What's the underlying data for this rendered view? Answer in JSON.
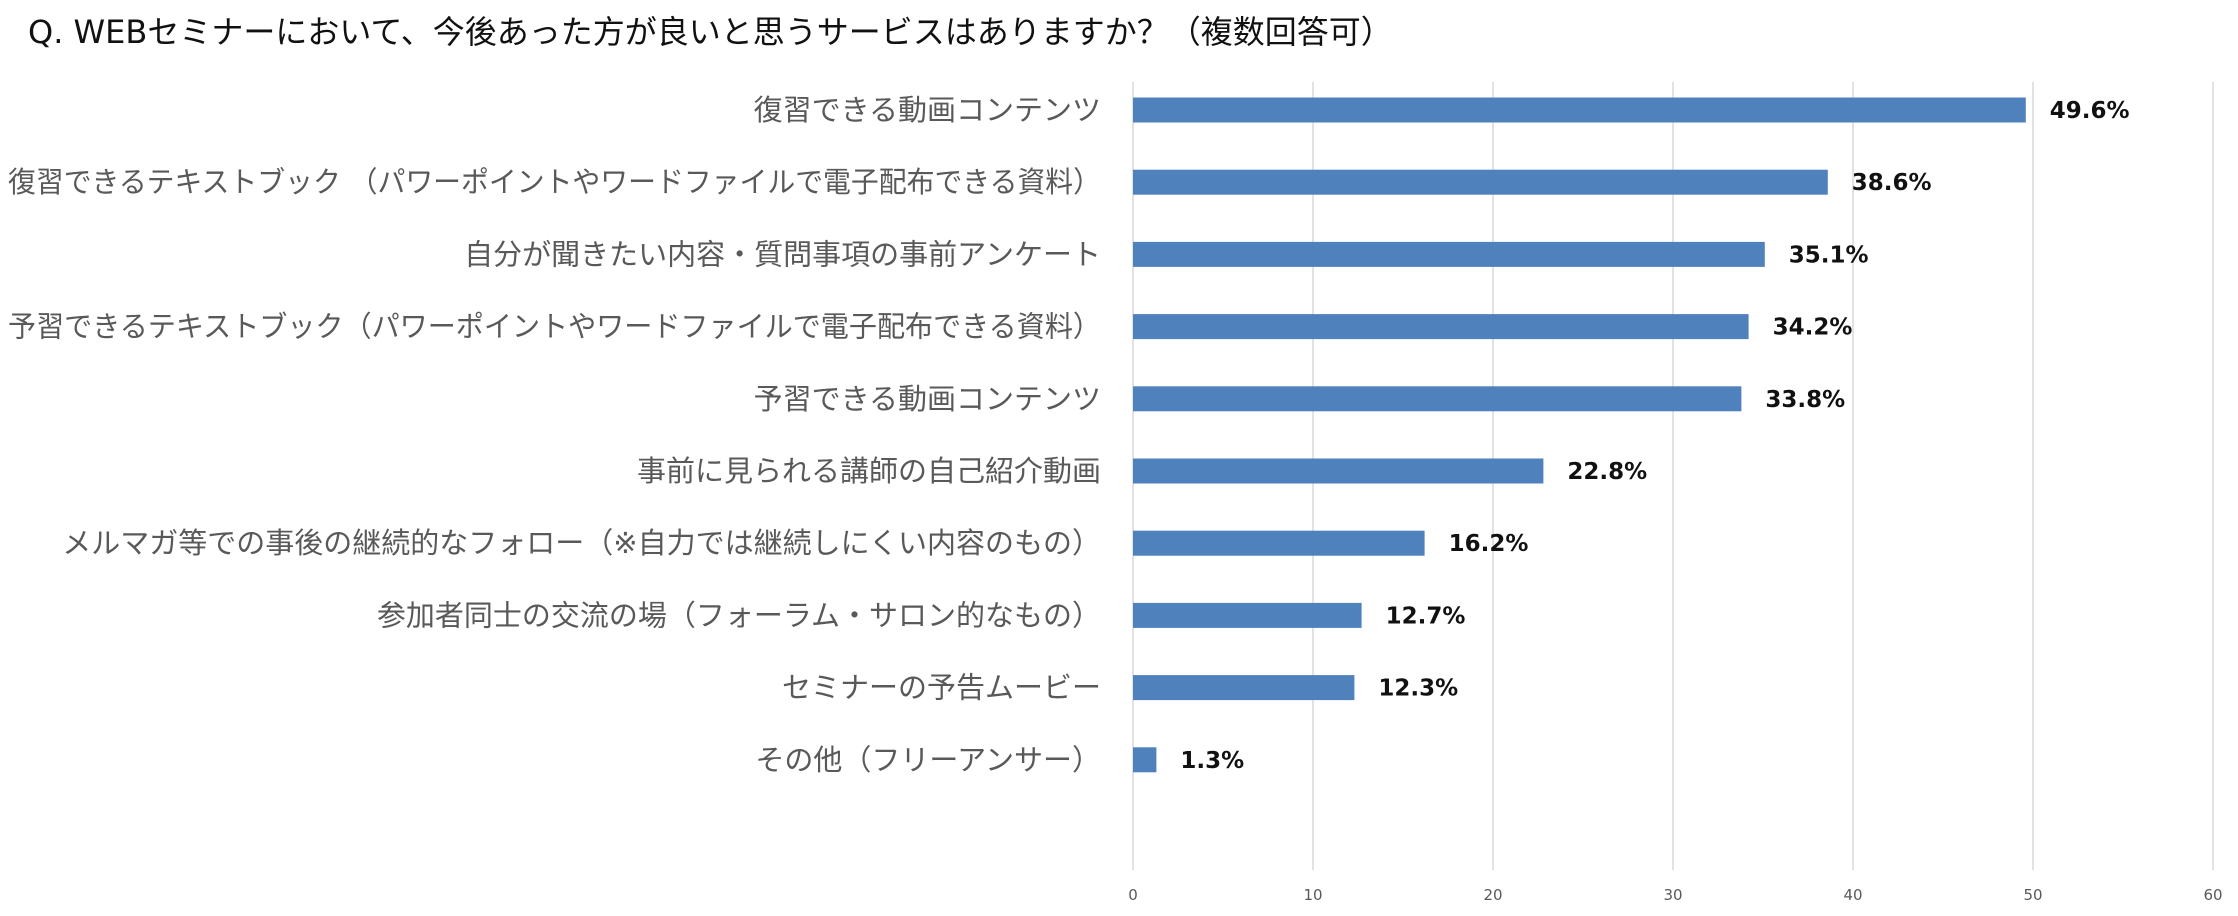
{
  "chart_data": {
    "type": "bar",
    "orientation": "horizontal",
    "title": "Q. WEBセミナーにおいて、今後あった方が良いと思うサービスはありますか？（複数回答可）",
    "categories": [
      "復習できる動画コンテンツ",
      "復習できるテキストブック （パワーポイントやワードファイルで電子配布できる資料）",
      "自分が聞きたい内容・質問事項の事前アンケート",
      "予習できるテキストブック（パワーポイントやワードファイルで電子配布できる資料）",
      "予習できる動画コンテンツ",
      "事前に見られる講師の自己紹介動画",
      "メルマガ等での事後の継続的なフォロー（※自力では継続しにくい内容のもの）",
      "参加者同士の交流の場（フォーラム・サロン的なもの）",
      "セミナーの予告ムービー",
      "その他（フリーアンサー）"
    ],
    "values": [
      49.6,
      38.6,
      35.1,
      34.2,
      33.8,
      22.8,
      16.2,
      12.7,
      12.3,
      1.3
    ],
    "value_labels": [
      "49.6%",
      "38.6%",
      "35.1%",
      "34.2%",
      "33.8%",
      "22.8%",
      "16.2%",
      "12.7%",
      "12.3%",
      "1.3%"
    ],
    "xlim": [
      0,
      60
    ],
    "xticks": [
      0,
      10,
      20,
      30,
      40,
      50,
      60
    ],
    "grid": "vertical",
    "legend": "none",
    "bar_color": "#4f81bd",
    "grid_color": "#d9d9d9"
  }
}
